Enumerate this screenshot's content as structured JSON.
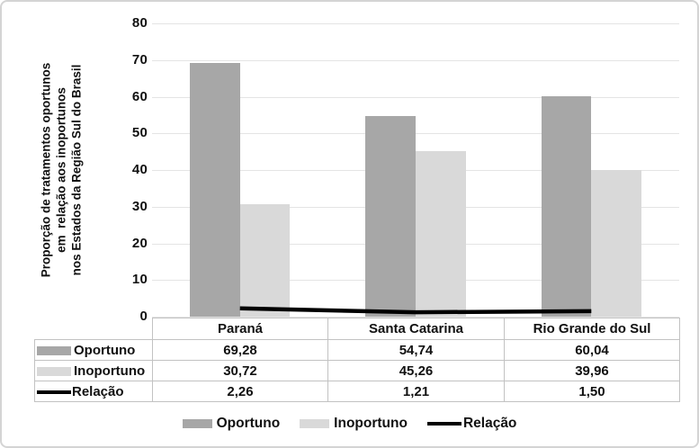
{
  "chart_data": {
    "type": "bar",
    "subtype": "grouped bars with overlay line",
    "categories": [
      "Paraná",
      "Santa Catarina",
      "Rio Grande do Sul"
    ],
    "series": [
      {
        "name": "Oportuno",
        "kind": "bar",
        "color": "#a7a7a7",
        "values": [
          69.28,
          54.74,
          60.04
        ]
      },
      {
        "name": "Inoportuno",
        "kind": "bar",
        "color": "#d9d9d9",
        "values": [
          30.72,
          45.26,
          39.96
        ]
      },
      {
        "name": "Relação",
        "kind": "line",
        "color": "#000000",
        "values": [
          2.26,
          1.21,
          1.5
        ]
      }
    ],
    "title": "",
    "xlabel": "",
    "ylabel": "Proporção de tratamentos oportunos em relação aos inoportunos nos Estados da Região Sul do Brasil",
    "ylim": [
      0,
      80
    ],
    "ytick_step": 10,
    "grid": true,
    "legend_position": "bottom"
  },
  "axis": {
    "ticks": [
      "80",
      "70",
      "60",
      "50",
      "40",
      "30",
      "20",
      "10",
      "0"
    ]
  },
  "ylabel_lines": [
    "Proporção de tratamentos oportunos",
    "em  relação aos inoportunos",
    "nos Estados da Região Sul do Brasil"
  ],
  "table": {
    "headers": [
      "Paraná",
      "Santa Catarina",
      "Rio Grande do Sul"
    ],
    "rows": [
      {
        "label": "Oportuno",
        "values": [
          "69,28",
          "54,74",
          "60,04"
        ]
      },
      {
        "label": "Inoportuno",
        "values": [
          "30,72",
          "45,26",
          "39,96"
        ]
      },
      {
        "label": "Relação",
        "values": [
          "2,26",
          "1,21",
          "1,50"
        ]
      }
    ]
  },
  "legend": {
    "items": [
      {
        "label": "Oportuno"
      },
      {
        "label": "Inoportuno"
      },
      {
        "label": "Relação"
      }
    ]
  },
  "colors": {
    "bar_dark": "#a7a7a7",
    "bar_light": "#d9d9d9",
    "line": "#000000",
    "gridline": "#e4e4e4",
    "table_border": "#c2c2c2",
    "frame_border": "#d4d4d4",
    "text": "#111111"
  }
}
